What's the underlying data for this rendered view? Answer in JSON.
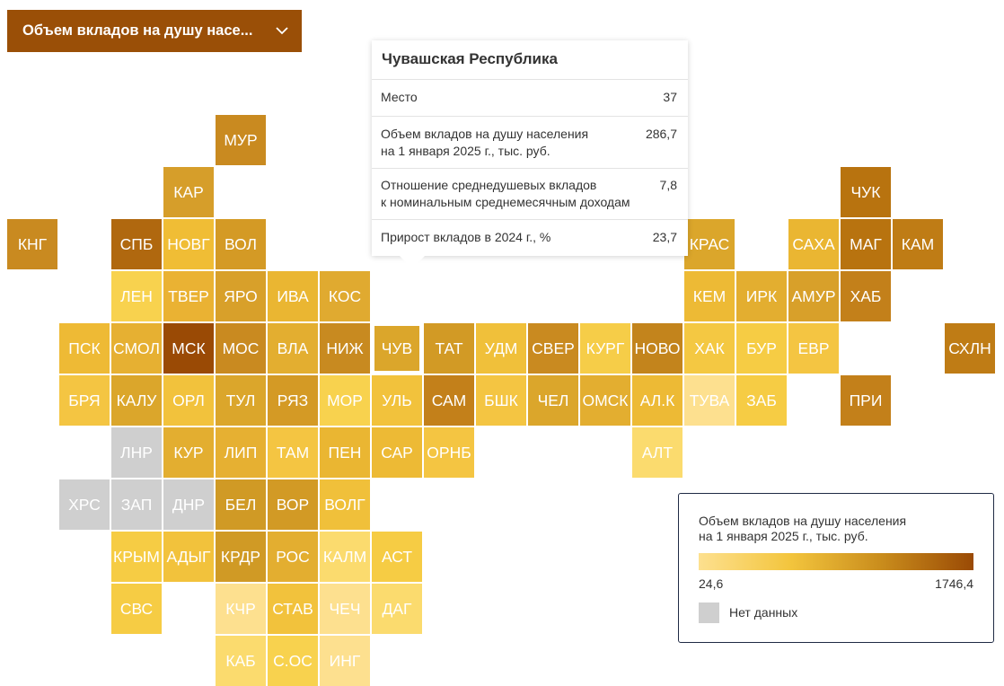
{
  "dropdown": {
    "label": "Объем вкладов на душу насе...",
    "icon": "chevron-down-icon"
  },
  "tooltip": {
    "title": "Чувашская Республика",
    "rows": [
      {
        "label": "Место",
        "value": "37"
      },
      {
        "label": "Объем вкладов на душу населения\nна 1 января 2025 г., тыс. руб.",
        "value": "286,7"
      },
      {
        "label": "Отношение среднедушевых вкладов\nк номинальным среднемесячным доходам",
        "value": "7,8"
      },
      {
        "label": "Прирост вкладов в 2024 г., %",
        "value": "23,7"
      }
    ]
  },
  "legend": {
    "title": "Объем вкладов на душу населения\nна 1 января 2025 г., тыс. руб.",
    "min": "24,6",
    "max": "1746,4",
    "no_data_label": "Нет данных",
    "no_data_color": "#cfcfcf",
    "gradient_colors": [
      "#fde08f",
      "#f3c53d",
      "#c98c1c",
      "#9a4a05"
    ]
  },
  "regions": [
    {
      "label": "МУР",
      "col": 4,
      "row": 1,
      "color": "#c98a20"
    },
    {
      "label": "КАР",
      "col": 3,
      "row": 2,
      "color": "#d69e2a"
    },
    {
      "label": "ЧУК",
      "col": 16,
      "row": 2,
      "color": "#b8730f"
    },
    {
      "label": "КНГ",
      "col": 0,
      "row": 3,
      "color": "#c98a20"
    },
    {
      "label": "СПБ",
      "col": 2,
      "row": 3,
      "color": "#b0680f"
    },
    {
      "label": "НОВГ",
      "col": 3,
      "row": 3,
      "color": "#f0bd35"
    },
    {
      "label": "ВОЛ",
      "col": 4,
      "row": 3,
      "color": "#d49a25"
    },
    {
      "label": "КРАС",
      "col": 13,
      "row": 3,
      "color": "#dba62b"
    },
    {
      "label": "САХА",
      "col": 15,
      "row": 3,
      "color": "#eab632"
    },
    {
      "label": "МАГ",
      "col": 16,
      "row": 3,
      "color": "#b8730f"
    },
    {
      "label": "КАМ",
      "col": 17,
      "row": 3,
      "color": "#bf7c15"
    },
    {
      "label": "ЛЕН",
      "col": 2,
      "row": 4,
      "color": "#f8d24e"
    },
    {
      "label": "ТВЕР",
      "col": 3,
      "row": 4,
      "color": "#eab233"
    },
    {
      "label": "ЯРО",
      "col": 4,
      "row": 4,
      "color": "#d8a02a"
    },
    {
      "label": "ИВА",
      "col": 5,
      "row": 4,
      "color": "#eab632"
    },
    {
      "label": "КОС",
      "col": 6,
      "row": 4,
      "color": "#e0aa30"
    },
    {
      "label": "КЕМ",
      "col": 13,
      "row": 4,
      "color": "#edba35"
    },
    {
      "label": "ИРК",
      "col": 14,
      "row": 4,
      "color": "#e3ae30"
    },
    {
      "label": "АМУР",
      "col": 15,
      "row": 4,
      "color": "#d8a02a"
    },
    {
      "label": "ХАБ",
      "col": 16,
      "row": 4,
      "color": "#c3801a"
    },
    {
      "label": "ПСК",
      "col": 1,
      "row": 5,
      "color": "#eeba35"
    },
    {
      "label": "СМОЛ",
      "col": 2,
      "row": 5,
      "color": "#e6b032"
    },
    {
      "label": "МСК",
      "col": 3,
      "row": 5,
      "color": "#9a4a05"
    },
    {
      "label": "МОС",
      "col": 4,
      "row": 5,
      "color": "#c98a20"
    },
    {
      "label": "ВЛА",
      "col": 5,
      "row": 5,
      "color": "#e3ae30"
    },
    {
      "label": "НИЖ",
      "col": 6,
      "row": 5,
      "color": "#c88a20"
    },
    {
      "label": "ЧУВ",
      "col": 7,
      "row": 5,
      "color": "#dba62b",
      "selected": true
    },
    {
      "label": "ТАТ",
      "col": 8,
      "row": 5,
      "color": "#d29a25"
    },
    {
      "label": "УДМ",
      "col": 9,
      "row": 5,
      "color": "#f0c03a"
    },
    {
      "label": "СВЕР",
      "col": 10,
      "row": 5,
      "color": "#c98a20"
    },
    {
      "label": "КУРГ",
      "col": 11,
      "row": 5,
      "color": "#f6cd48"
    },
    {
      "label": "НОВО",
      "col": 12,
      "row": 5,
      "color": "#c3841c"
    },
    {
      "label": "ХАК",
      "col": 13,
      "row": 5,
      "color": "#f4c842"
    },
    {
      "label": "БУР",
      "col": 14,
      "row": 5,
      "color": "#f6cc44"
    },
    {
      "label": "ЕВР",
      "col": 15,
      "row": 5,
      "color": "#f4c542"
    },
    {
      "label": "СХЛН",
      "col": 18,
      "row": 5,
      "color": "#bf7c15"
    },
    {
      "label": "БРЯ",
      "col": 1,
      "row": 6,
      "color": "#f4c542"
    },
    {
      "label": "КАЛУ",
      "col": 2,
      "row": 6,
      "color": "#dba62b"
    },
    {
      "label": "ОРЛ",
      "col": 3,
      "row": 6,
      "color": "#f2c23c"
    },
    {
      "label": "ТУЛ",
      "col": 4,
      "row": 6,
      "color": "#dba62b"
    },
    {
      "label": "РЯЗ",
      "col": 5,
      "row": 6,
      "color": "#d49a25"
    },
    {
      "label": "МОР",
      "col": 6,
      "row": 6,
      "color": "#f8d24e"
    },
    {
      "label": "УЛЬ",
      "col": 7,
      "row": 6,
      "color": "#f2c23c"
    },
    {
      "label": "САМ",
      "col": 8,
      "row": 6,
      "color": "#c3801a"
    },
    {
      "label": "БШК",
      "col": 9,
      "row": 6,
      "color": "#f4c542"
    },
    {
      "label": "ЧЕЛ",
      "col": 10,
      "row": 6,
      "color": "#dba62b"
    },
    {
      "label": "ОМСК",
      "col": 11,
      "row": 6,
      "color": "#e3ae30"
    },
    {
      "label": "АЛ.К",
      "col": 12,
      "row": 6,
      "color": "#edba35"
    },
    {
      "label": "ТУВА",
      "col": 13,
      "row": 6,
      "color": "#fde08f"
    },
    {
      "label": "ЗАБ",
      "col": 14,
      "row": 6,
      "color": "#f6cc44"
    },
    {
      "label": "ПРИ",
      "col": 16,
      "row": 6,
      "color": "#c3801a"
    },
    {
      "label": "ЛНР",
      "col": 2,
      "row": 7,
      "color": "#cfcfcf"
    },
    {
      "label": "КУР",
      "col": 3,
      "row": 7,
      "color": "#e3ae30"
    },
    {
      "label": "ЛИП",
      "col": 4,
      "row": 7,
      "color": "#e6b032"
    },
    {
      "label": "ТАМ",
      "col": 5,
      "row": 7,
      "color": "#f4c542"
    },
    {
      "label": "ПЕН",
      "col": 6,
      "row": 7,
      "color": "#eab632"
    },
    {
      "label": "САР",
      "col": 7,
      "row": 7,
      "color": "#edba35"
    },
    {
      "label": "ОРНБ",
      "col": 8,
      "row": 7,
      "color": "#f4c542"
    },
    {
      "label": "АЛТ",
      "col": 12,
      "row": 7,
      "color": "#fbdb6e"
    },
    {
      "label": "ХРС",
      "col": 1,
      "row": 8,
      "color": "#cfcfcf"
    },
    {
      "label": "ЗАП",
      "col": 2,
      "row": 8,
      "color": "#cfcfcf"
    },
    {
      "label": "ДНР",
      "col": 3,
      "row": 8,
      "color": "#cfcfcf"
    },
    {
      "label": "БЕЛ",
      "col": 4,
      "row": 8,
      "color": "#d09a25"
    },
    {
      "label": "ВОР",
      "col": 5,
      "row": 8,
      "color": "#d29a25"
    },
    {
      "label": "ВОЛГ",
      "col": 6,
      "row": 8,
      "color": "#f0c03a"
    },
    {
      "label": "КРЫМ",
      "col": 2,
      "row": 9,
      "color": "#f6cc44"
    },
    {
      "label": "АДЫГ",
      "col": 3,
      "row": 9,
      "color": "#f2c23c"
    },
    {
      "label": "КРДР",
      "col": 4,
      "row": 9,
      "color": "#d09a25"
    },
    {
      "label": "РОС",
      "col": 5,
      "row": 9,
      "color": "#e3ae30"
    },
    {
      "label": "КАЛМ",
      "col": 6,
      "row": 9,
      "color": "#fbdb6e"
    },
    {
      "label": "АСТ",
      "col": 7,
      "row": 9,
      "color": "#f6cc44"
    },
    {
      "label": "СВС",
      "col": 2,
      "row": 10,
      "color": "#f6cc44"
    },
    {
      "label": "КЧР",
      "col": 4,
      "row": 10,
      "color": "#fde08f"
    },
    {
      "label": "СТАВ",
      "col": 5,
      "row": 10,
      "color": "#f2c23c"
    },
    {
      "label": "ЧЕЧ",
      "col": 6,
      "row": 10,
      "color": "#fde08f"
    },
    {
      "label": "ДАГ",
      "col": 7,
      "row": 10,
      "color": "#fbdb6e"
    },
    {
      "label": "КАБ",
      "col": 4,
      "row": 11,
      "color": "#fbdb6e"
    },
    {
      "label": "С.ОС",
      "col": 5,
      "row": 11,
      "color": "#f8d24e"
    },
    {
      "label": "ИНГ",
      "col": 6,
      "row": 11,
      "color": "#fde08f"
    }
  ]
}
